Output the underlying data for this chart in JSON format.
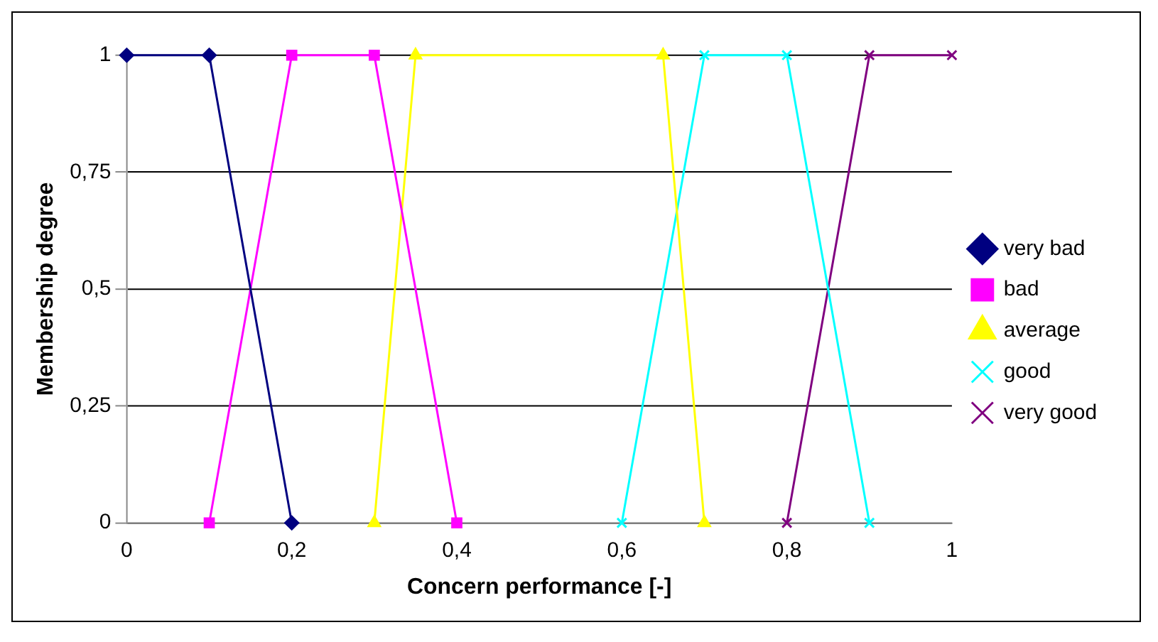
{
  "chart_data": {
    "type": "line",
    "xlabel": "Concern performance [-]",
    "ylabel": "Membership degree",
    "xlim": [
      0,
      1
    ],
    "ylim": [
      0,
      1
    ],
    "xticks": [
      0,
      {
        "value": 0.2,
        "label": "0,2"
      },
      {
        "value": 0.4,
        "label": "0,4"
      },
      {
        "value": 0.6,
        "label": "0,6"
      },
      {
        "value": 0.8,
        "label": "0,8"
      },
      1
    ],
    "yticks": [
      0,
      {
        "value": 0.25,
        "label": "0,25"
      },
      {
        "value": 0.5,
        "label": "0,5"
      },
      {
        "value": 0.75,
        "label": "0,75"
      },
      1
    ],
    "grid": "y",
    "legend": "right",
    "line_style": "solid",
    "series": [
      {
        "name": "very bad",
        "color": "#000080",
        "marker": "diamond",
        "x": [
          0,
          0.1,
          0.2
        ],
        "values": [
          1,
          1,
          0
        ]
      },
      {
        "name": "bad",
        "color": "#ff00ff",
        "marker": "square",
        "x": [
          0.1,
          0.2,
          0.3,
          0.4
        ],
        "values": [
          0,
          1,
          1,
          0
        ]
      },
      {
        "name": "average",
        "color": "#ffff00",
        "marker": "triangle",
        "x": [
          0.3,
          0.35,
          0.65,
          0.7
        ],
        "values": [
          0,
          1,
          1,
          0
        ]
      },
      {
        "name": "good",
        "color": "#00ffff",
        "marker": "cross",
        "x": [
          0.6,
          0.7,
          0.8,
          0.9
        ],
        "values": [
          0,
          1,
          1,
          0
        ]
      },
      {
        "name": "very good",
        "color": "#800080",
        "marker": "cross",
        "x": [
          0.8,
          0.9,
          1
        ],
        "values": [
          0,
          1,
          1
        ]
      }
    ]
  }
}
